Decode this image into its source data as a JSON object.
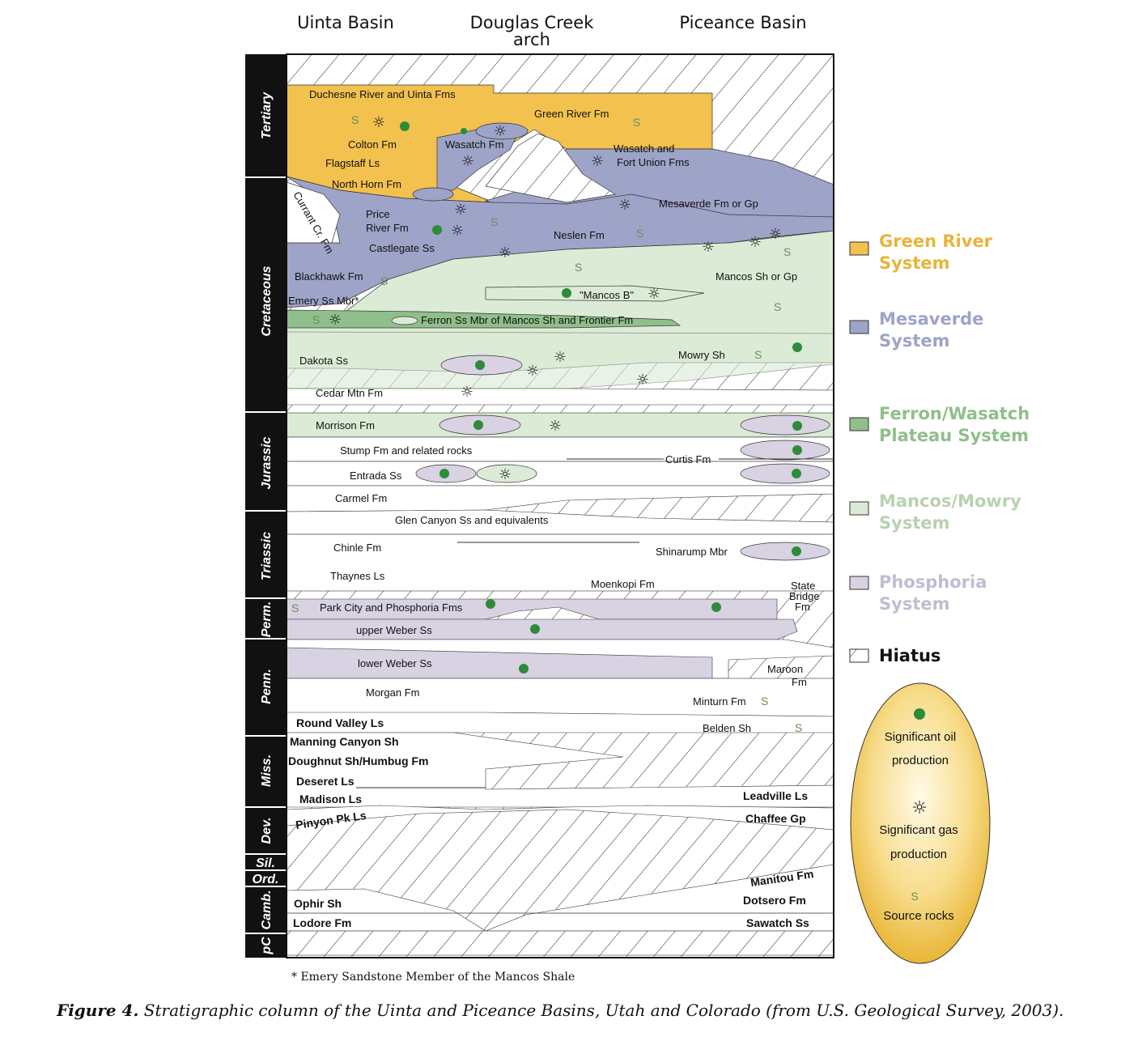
{
  "headers": {
    "left": "Uinta Basin",
    "middle_line1": "Douglas Creek",
    "middle_line2": "arch",
    "right": "Piceance Basin"
  },
  "periods": [
    "Tertiary",
    "Cretaceous",
    "Jurassic",
    "Triassic",
    "Perm.",
    "Penn.",
    "Miss.",
    "Dev.",
    "Sil.",
    "Ord.",
    "Camb.",
    "pC"
  ],
  "units": {
    "duchesne": "Duchesne River and Uinta Fms",
    "green_river": "Green River Fm",
    "colton": "Colton Fm",
    "wasatch": "Wasatch Fm",
    "wasatch_fort1": "Wasatch and",
    "wasatch_fort2": "Fort Union Fms",
    "flagstaff": "Flagstaff Ls",
    "north_horn": "North Horn Fm",
    "mesaverde": "Mesaverde Fm or Gp",
    "price1": "Price",
    "price2": "River Fm",
    "currant": "Currant Cr. Fm",
    "neslen": "Neslen Fm",
    "castlegate": "Castlegate Ss",
    "blackhawk": "Blackhawk Fm",
    "mancos": "Mancos Sh or Gp",
    "emery": "Emery Ss Mbr*",
    "mancos_b": "\"Mancos B\"",
    "ferron": "Ferron Ss Mbr of Mancos Sh and Frontier Fm",
    "dakota": "Dakota Ss",
    "mowry": "Mowry Sh",
    "cedar": "Cedar Mtn Fm",
    "morrison": "Morrison Fm",
    "stump": "Stump Fm and related rocks",
    "curtis": "Curtis Fm",
    "entrada": "Entrada Ss",
    "carmel": "Carmel Fm",
    "glen": "Glen Canyon Ss and equivalents",
    "chinle": "Chinle Fm",
    "shinarump": "Shinarump Mbr",
    "thaynes": "Thaynes Ls",
    "moenkopi": "Moenkopi Fm",
    "state1": "State",
    "state2": "Bridge",
    "state3": "Fm",
    "park_city": "Park City and Phosphoria Fms",
    "upper_weber": "upper Weber Ss",
    "lower_weber": "lower Weber Ss",
    "maroon1": "Maroon",
    "maroon2": "Fm",
    "morgan": "Morgan Fm",
    "minturn": "Minturn Fm",
    "round_valley": "Round Valley Ls",
    "belden": "Belden Sh",
    "manning": "Manning Canyon Sh",
    "doughnut": "Doughnut Sh/Humbug Fm",
    "deseret": "Deseret Ls",
    "madison": "Madison Ls",
    "leadville": "Leadville Ls",
    "pinyon": "Pinyon Pk Ls",
    "chaffee": "Chaffee Gp",
    "manitou": "Manitou Fm",
    "ophir": "Ophir Sh",
    "dotsero": "Dotsero Fm",
    "lodore": "Lodore Fm",
    "sawatch": "Sawatch Ss"
  },
  "source_mark": "S",
  "legend": [
    {
      "line1": "Green River",
      "line2": "System",
      "color": "#f2c14e",
      "text_color": "#e8b43a"
    },
    {
      "line1": "Mesaverde",
      "line2": "System",
      "color": "#9ea3c8",
      "text_color": "#9ea3c8"
    },
    {
      "line1": "Ferron/Wasatch",
      "line2": "Plateau System",
      "color": "#8fbf8a",
      "text_color": "#8fbf8a"
    },
    {
      "line1": "Mancos/Mowry",
      "line2": "System",
      "color": "#dcebd6",
      "text_color": "#b9d1b0"
    },
    {
      "line1": "Phosphoria",
      "line2": "System",
      "color": "#d8d2e2",
      "text_color": "#c3bcd1"
    }
  ],
  "hiatus": "Hiatus",
  "key": {
    "oil1": "Significant oil",
    "oil2": "production",
    "gas1": "Significant gas",
    "gas2": "production",
    "src_symbol": "S",
    "src": "Source rocks"
  },
  "footnote": "* Emery Sandstone Member of the Mancos Shale",
  "caption": {
    "bold": "Figure 4.",
    "text": " Stratigraphic column of the Uinta and Piceance Basins, Utah and Colorado (from U.S. Geological Survey, 2003)."
  }
}
